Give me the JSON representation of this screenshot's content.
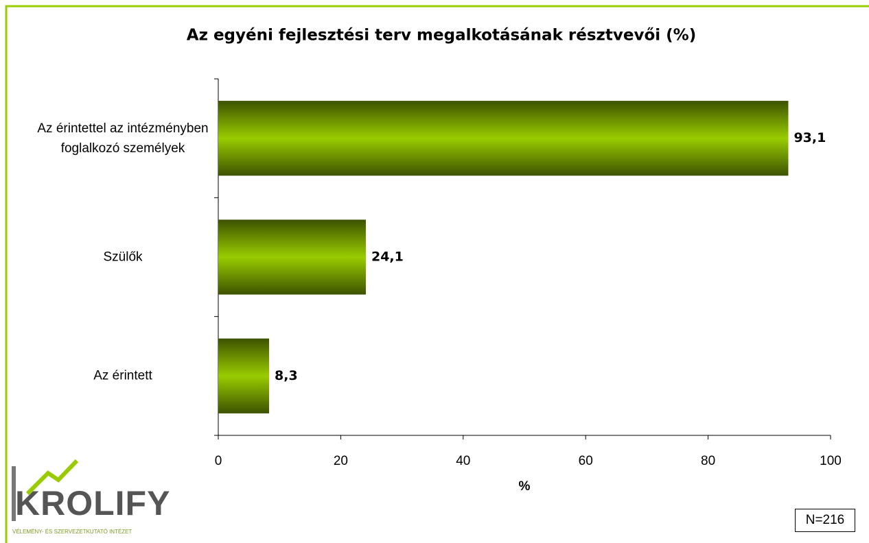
{
  "chart_data": {
    "type": "bar",
    "orientation": "horizontal",
    "title": "Az egyéni fejlesztési terv megalkotásának résztvevői (%)",
    "categories": [
      "Az érintettel az intézményben foglalkozó személyek",
      "Szülők",
      "Az érintett"
    ],
    "values": [
      93.1,
      24.1,
      8.3
    ],
    "value_labels": [
      "93,1",
      "24,1",
      "8,3"
    ],
    "color": "#99cc00",
    "xlim": [
      0,
      100
    ],
    "xticks": [
      0,
      20,
      40,
      60,
      80,
      100
    ],
    "xlabel": "%"
  },
  "logo": {
    "name": "KROLIFY",
    "tagline": "VÉLEMÉNY- ÉS SZERVEZETKUTATÓ INTÉZET"
  },
  "note": "N=216"
}
